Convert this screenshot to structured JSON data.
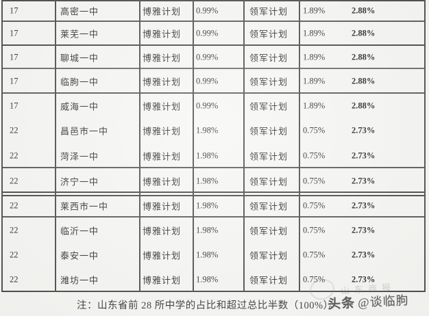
{
  "table": {
    "columns": [
      "rank",
      "school",
      "plan1",
      "pct1",
      "plan2",
      "pct2",
      "total"
    ],
    "rows": [
      {
        "rank": "17",
        "school": "高密一中",
        "plan1": "博雅计划",
        "pct1": "0.99%",
        "plan2": "领军计划",
        "pct2": "1.89%",
        "total": "2.88%"
      },
      {
        "rank": "17",
        "school": "莱芜一中",
        "plan1": "博雅计划",
        "pct1": "0.99%",
        "plan2": "领军计划",
        "pct2": "1.89%",
        "total": "2.88%"
      },
      {
        "rank": "17",
        "school": "聊城一中",
        "plan1": "博雅计划",
        "pct1": "0.99%",
        "plan2": "领军计划",
        "pct2": "1.89%",
        "total": "2.88%"
      },
      {
        "rank": "17",
        "school": "临朐一中",
        "plan1": "博雅计划",
        "pct1": "0.99%",
        "plan2": "领军计划",
        "pct2": "1.89%",
        "total": "2.88%"
      },
      {
        "rank": "17",
        "school": "威海一中",
        "plan1": "博雅计划",
        "pct1": "0.99%",
        "plan2": "领军计划",
        "pct2": "1.89%",
        "total": "2.88%"
      },
      {
        "rank": "22",
        "school": "昌邑市一中",
        "plan1": "博雅计划",
        "pct1": "1.98%",
        "plan2": "领军计划",
        "pct2": "0.75%",
        "total": "2.73%"
      },
      {
        "rank": "22",
        "school": "菏泽一中",
        "plan1": "博雅计划",
        "pct1": "1.98%",
        "plan2": "领军计划",
        "pct2": "0.75%",
        "total": "2.73%"
      },
      {
        "rank": "22",
        "school": "济宁一中",
        "plan1": "博雅计划",
        "pct1": "1.98%",
        "plan2": "领军计划",
        "pct2": "0.75%",
        "total": "2.73%"
      },
      {
        "rank": "22",
        "school": "莱西市一中",
        "plan1": "博雅计划",
        "pct1": "1.98%",
        "plan2": "领军计划",
        "pct2": "0.75%",
        "total": "2.73%"
      },
      {
        "rank": "22",
        "school": "临沂一中",
        "plan1": "博雅计划",
        "pct1": "1.98%",
        "plan2": "领军计划",
        "pct2": "0.75%",
        "total": "2.73%"
      },
      {
        "rank": "22",
        "school": "泰安一中",
        "plan1": "博雅计划",
        "pct1": "1.98%",
        "plan2": "领军计划",
        "pct2": "0.75%",
        "total": "2.73%"
      },
      {
        "rank": "22",
        "school": "潍坊一中",
        "plan1": "博雅计划",
        "pct1": "1.98%",
        "plan2": "领军计划",
        "pct2": "0.75%",
        "total": "2.73%"
      }
    ]
  },
  "note": "注：山东省前 28 所中学的占比和超过总比半数（100%）。",
  "watermark": {
    "platform": "头条",
    "account": "@谈临朐",
    "brand_faint": "山东商报"
  },
  "colors": {
    "paper": "#f6f6f4",
    "line": "#3a3a3a",
    "text": "#242424"
  }
}
